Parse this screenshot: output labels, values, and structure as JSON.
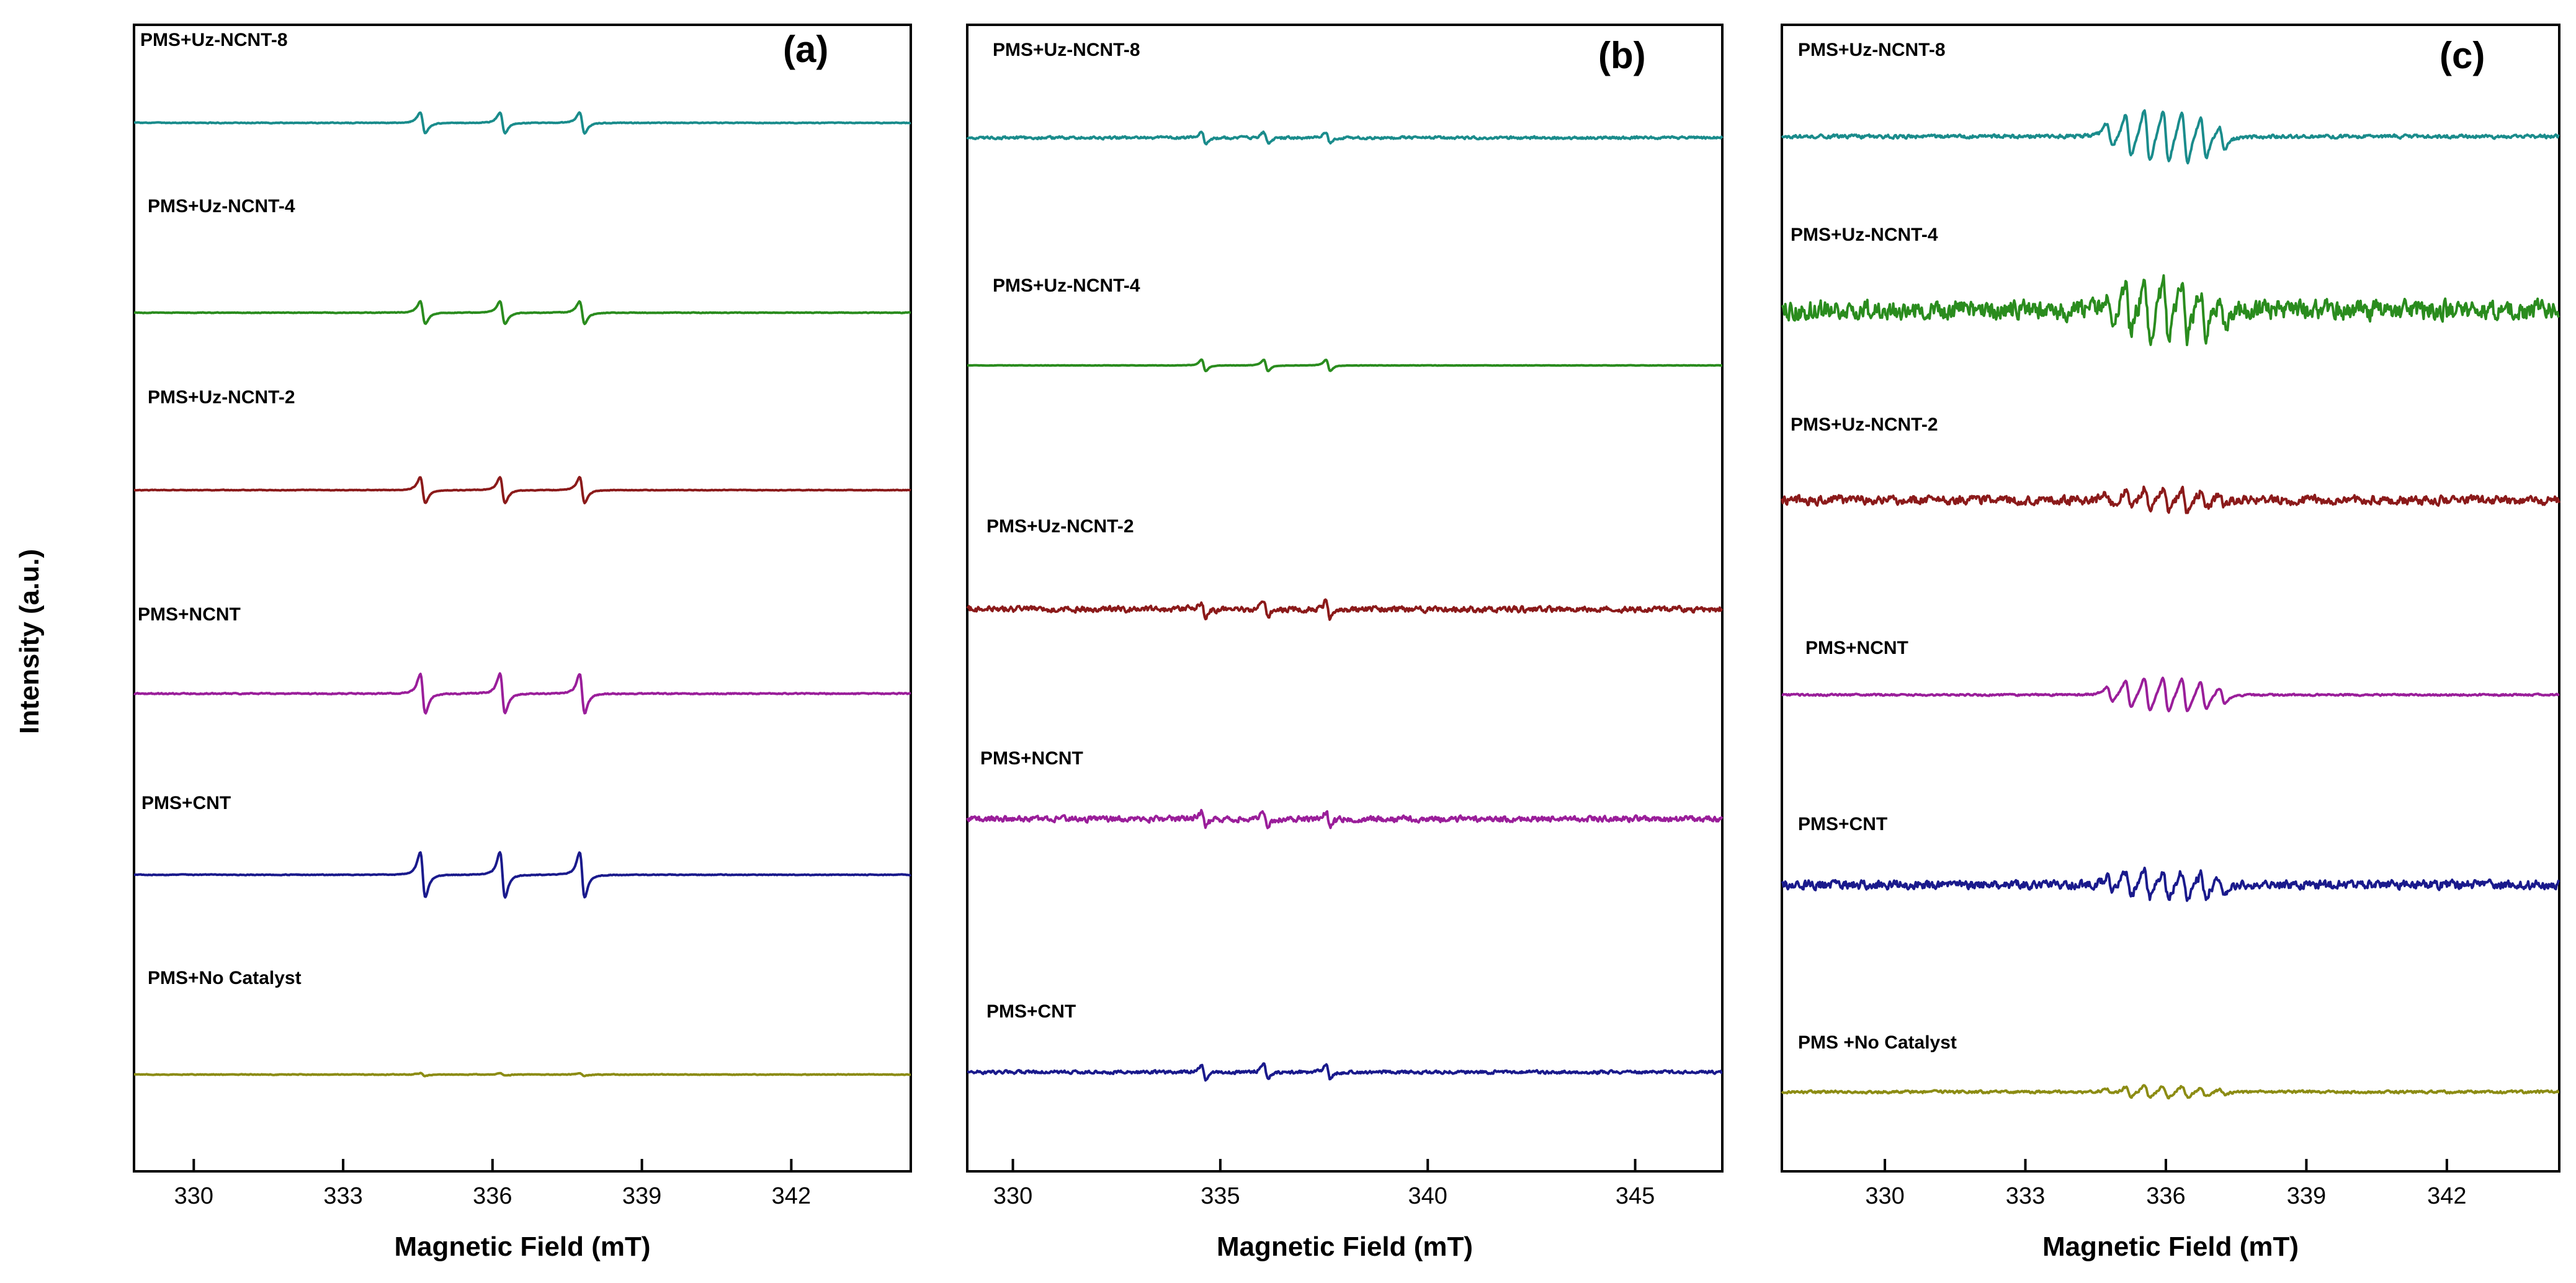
{
  "figure": {
    "ylabel": "Intensity (a.u.)"
  },
  "chart_data": [
    {
      "type": "line",
      "panel": "(a)",
      "xlabel": "Magnetic Field (mT)",
      "ylabel": "Intensity (a.u.)",
      "xlim": [
        328.8,
        344.4
      ],
      "xticks": [
        330,
        333,
        336,
        339,
        342
      ],
      "tick_labels": [
        "330",
        "333",
        "336",
        "339",
        "342"
      ],
      "pattern": "triplet",
      "peak_centers": [
        334.6,
        336.2,
        337.8
      ],
      "series": [
        {
          "name": "PMS+Uz-NCNT-8",
          "color": "#1a8c8c",
          "relative_amplitude": 0.55,
          "noise": 0.012
        },
        {
          "name": "PMS+Uz-NCNT-4",
          "color": "#2a8c1e",
          "relative_amplitude": 0.6,
          "noise": 0.01
        },
        {
          "name": "PMS+Uz-NCNT-2",
          "color": "#8b1a1a",
          "relative_amplitude": 0.68,
          "noise": 0.01
        },
        {
          "name": "PMS+NCNT",
          "color": "#9a1e9a",
          "relative_amplitude": 1.05,
          "noise": 0.018
        },
        {
          "name": "PMS+CNT",
          "color": "#1a1a8c",
          "relative_amplitude": 1.2,
          "noise": 0.012
        },
        {
          "name": "PMS+No Catalyst",
          "color": "#8c8c14",
          "relative_amplitude": 0.07,
          "noise": 0.012
        }
      ]
    },
    {
      "type": "line",
      "panel": "(b)",
      "xlabel": "Magnetic Field (mT)",
      "ylabel": "Intensity (a.u.)",
      "xlim": [
        328.9,
        347.1
      ],
      "xticks": [
        330,
        335,
        340,
        345
      ],
      "tick_labels": [
        "330",
        "335",
        "340",
        "345"
      ],
      "pattern": "triplet",
      "peak_centers": [
        334.6,
        336.1,
        337.6
      ],
      "series": [
        {
          "name": "PMS+Uz-NCNT-8",
          "color": "#1a8c8c",
          "relative_amplitude": 0.3,
          "noise": 0.04
        },
        {
          "name": "PMS+Uz-NCNT-4",
          "color": "#2a8c1e",
          "relative_amplitude": 0.3,
          "noise": 0.006
        },
        {
          "name": "PMS+Uz-NCNT-2",
          "color": "#8b1a1a",
          "relative_amplitude": 0.42,
          "noise": 0.09
        },
        {
          "name": "PMS+NCNT",
          "color": "#9a1e9a",
          "relative_amplitude": 0.38,
          "noise": 0.09
        },
        {
          "name": "PMS+CNT",
          "color": "#1a1a8c",
          "relative_amplitude": 0.38,
          "noise": 0.05
        }
      ]
    },
    {
      "type": "line",
      "panel": "(c)",
      "xlabel": "Magnetic Field (mT)",
      "ylabel": "Intensity (a.u.)",
      "xlim": [
        327.8,
        344.4
      ],
      "xticks": [
        330,
        333,
        336,
        339,
        342
      ],
      "tick_labels": [
        "330",
        "333",
        "336",
        "339",
        "342"
      ],
      "pattern": "septet",
      "peak_centers": [
        334.8,
        335.2,
        335.6,
        336.0,
        336.4,
        336.8,
        337.2
      ],
      "series": [
        {
          "name": "PMS+Uz-NCNT-8",
          "color": "#1a8c8c",
          "relative_amplitude": 1.0,
          "noise": 0.04
        },
        {
          "name": "PMS+Uz-NCNT-4",
          "color": "#2a8c1e",
          "relative_amplitude": 1.1,
          "noise": 0.22
        },
        {
          "name": "PMS+Uz-NCNT-2",
          "color": "#8b1a1a",
          "relative_amplitude": 0.45,
          "noise": 0.1
        },
        {
          "name": "PMS+NCNT",
          "color": "#9a1e9a",
          "relative_amplitude": 0.65,
          "noise": 0.02
        },
        {
          "name": "PMS+CNT",
          "color": "#1a1a8c",
          "relative_amplitude": 0.55,
          "noise": 0.1
        },
        {
          "name": "PMS +No Catalyst",
          "color": "#8c8c14",
          "relative_amplitude": 0.22,
          "noise": 0.03
        }
      ]
    }
  ]
}
